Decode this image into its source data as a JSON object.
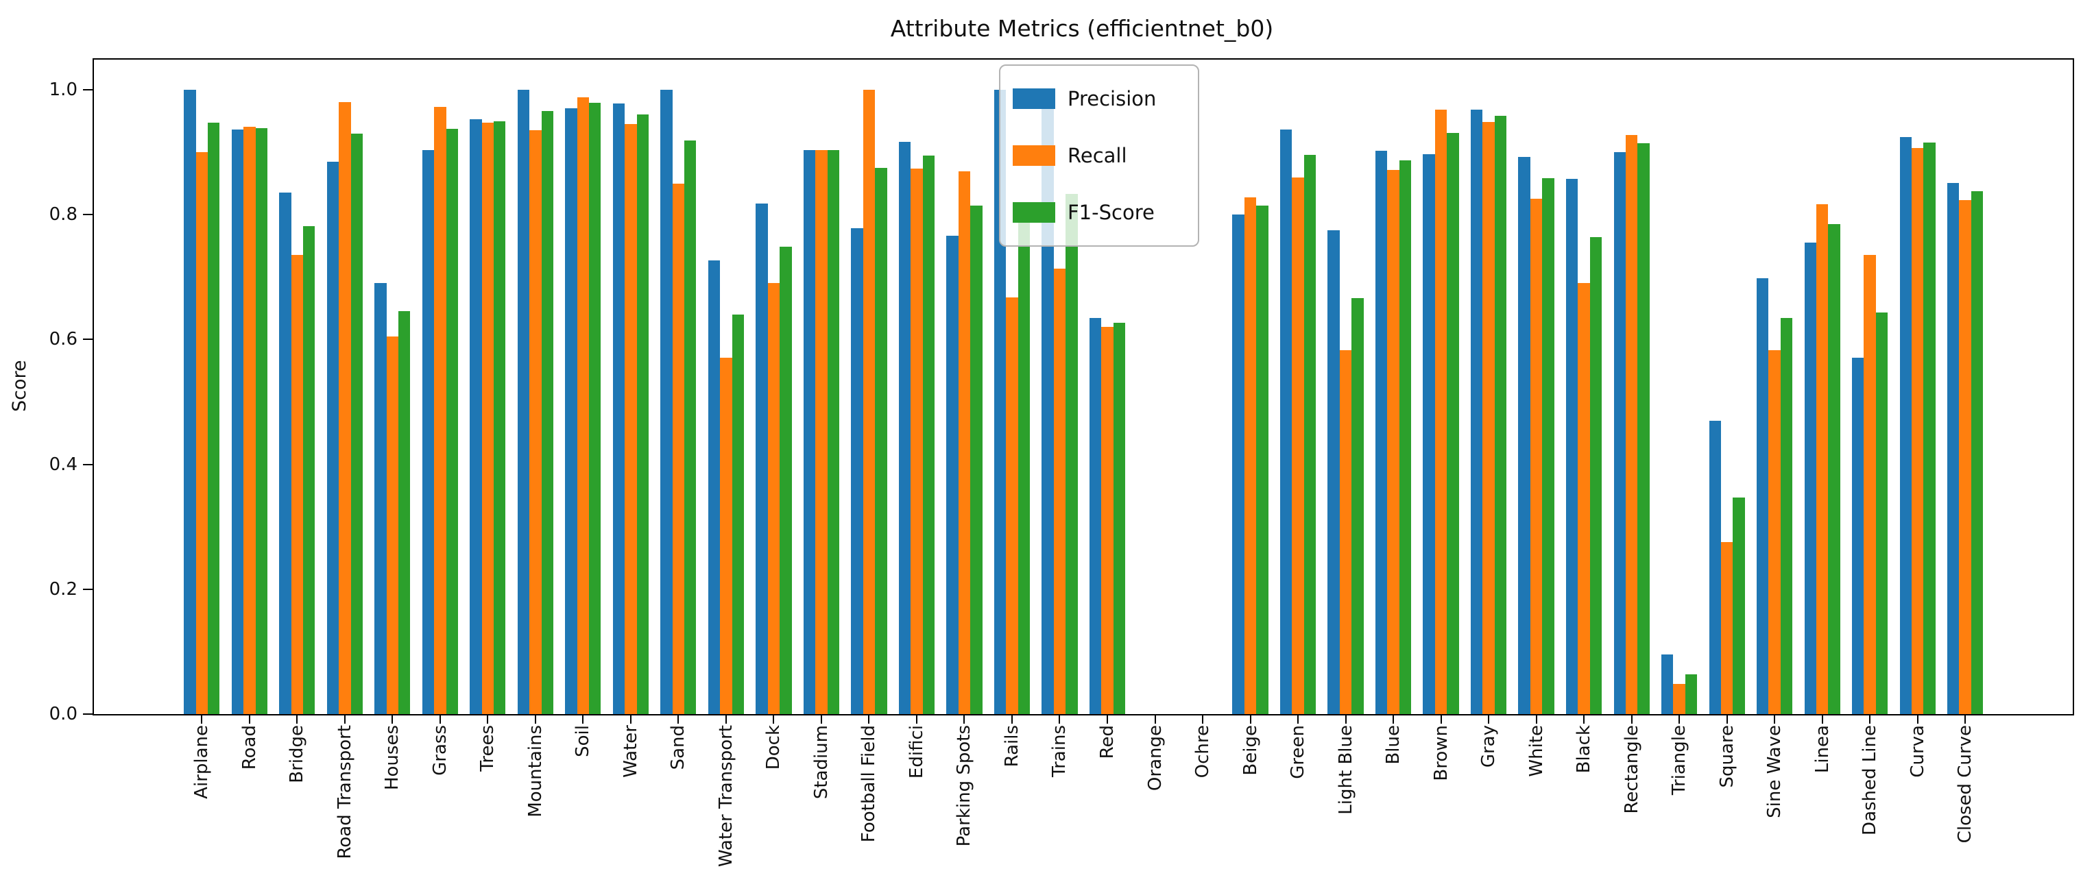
{
  "chart_data": {
    "type": "bar",
    "title": "Attribute Metrics (efficientnet_b0)",
    "xlabel": "",
    "ylabel": "Score",
    "ylim": [
      0.0,
      1.048
    ],
    "yticks": [
      0.0,
      0.2,
      0.4,
      0.6,
      0.8,
      1.0
    ],
    "grid": false,
    "legend_position": "upper center",
    "categories": [
      "Airplane",
      "Road",
      "Bridge",
      "Road Transport",
      "Houses",
      "Grass",
      "Trees",
      "Mountains",
      "Soil",
      "Water",
      "Sand",
      "Water Transport",
      "Dock",
      "Stadium",
      "Football Field",
      "Edifici",
      "Parking Spots",
      "Rails",
      "Trains",
      "Red",
      "Orange",
      "Ochre",
      "Beige",
      "Green",
      "Light Blue",
      "Blue",
      "Brown",
      "Gray",
      "White",
      "Black",
      "Rectangle",
      "Triangle",
      "Square",
      "Sine Wave",
      "Linea",
      "Dashed Line",
      "Curva",
      "Closed Curve"
    ],
    "series": [
      {
        "name": "Precision",
        "color": "#1f77b4",
        "values": [
          1.0,
          0.936,
          0.835,
          0.885,
          0.69,
          0.903,
          0.953,
          1.0,
          0.97,
          0.978,
          1.0,
          0.727,
          0.818,
          0.903,
          0.778,
          0.917,
          0.766,
          1.0,
          1.0,
          0.635,
          0.0,
          0.0,
          0.8,
          0.936,
          0.775,
          0.902,
          0.897,
          0.968,
          0.892,
          0.857,
          0.9,
          0.095,
          0.47,
          0.698,
          0.755,
          0.571,
          0.924,
          0.851
        ]
      },
      {
        "name": "Recall",
        "color": "#ff7f0e",
        "values": [
          0.9,
          0.941,
          0.735,
          0.98,
          0.605,
          0.973,
          0.947,
          0.935,
          0.988,
          0.945,
          0.85,
          0.571,
          0.69,
          0.903,
          1.0,
          0.874,
          0.869,
          0.667,
          0.714,
          0.62,
          0.0,
          0.0,
          0.828,
          0.86,
          0.583,
          0.872,
          0.968,
          0.948,
          0.826,
          0.69,
          0.928,
          0.048,
          0.275,
          0.583,
          0.817,
          0.735,
          0.907,
          0.823
        ]
      },
      {
        "name": "F1-Score",
        "color": "#2ca02c",
        "values": [
          0.947,
          0.939,
          0.782,
          0.93,
          0.645,
          0.937,
          0.95,
          0.966,
          0.979,
          0.961,
          0.919,
          0.64,
          0.749,
          0.903,
          0.875,
          0.895,
          0.814,
          0.8,
          0.833,
          0.627,
          0.0,
          0.0,
          0.814,
          0.896,
          0.666,
          0.887,
          0.931,
          0.958,
          0.858,
          0.764,
          0.914,
          0.064,
          0.347,
          0.635,
          0.785,
          0.643,
          0.915,
          0.837
        ]
      }
    ]
  }
}
